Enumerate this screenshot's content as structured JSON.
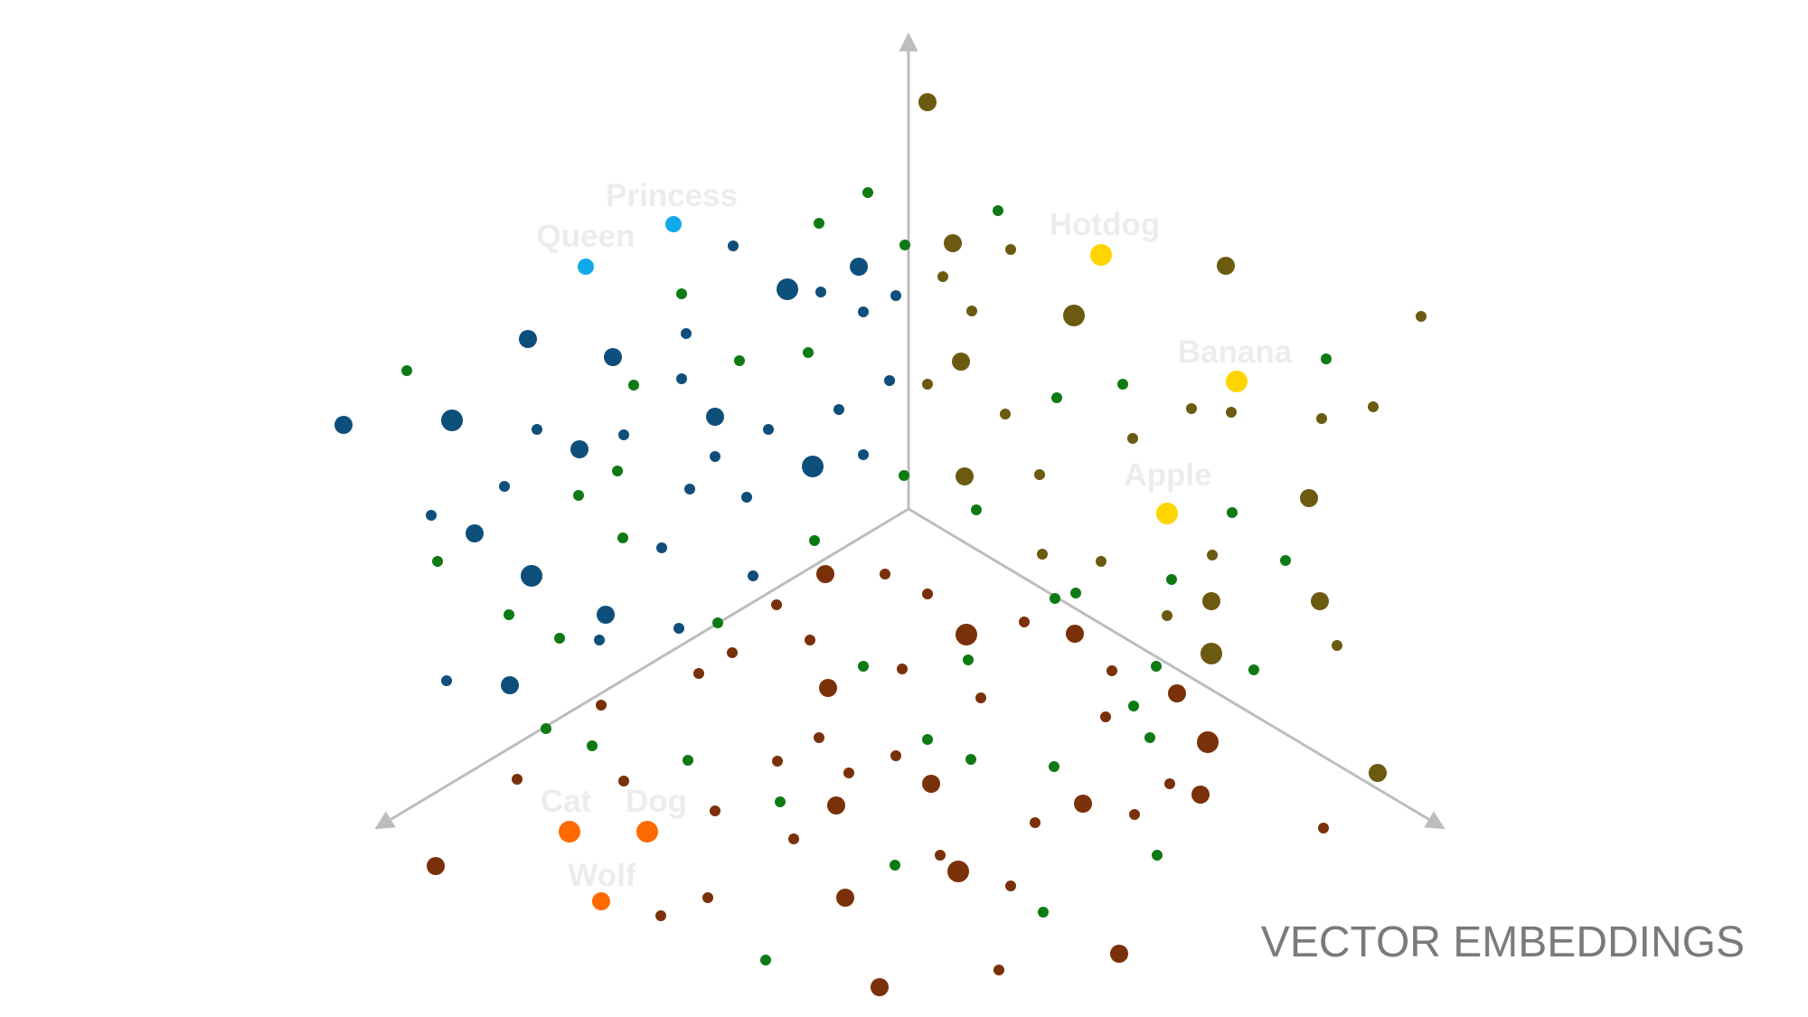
{
  "title": "VECTOR EMBEDDINGS",
  "colors": {
    "axis": "#bdbdbd",
    "blue_dark": "#0d4f7a",
    "blue_light": "#12a9ea",
    "olive": "#6b5a10",
    "yellow": "#ffd500",
    "brown": "#7a3008",
    "orange": "#ff6a00",
    "green": "#0e7a14",
    "label_text": "#ececec",
    "title_text": "#7a7a7a"
  },
  "labels": {
    "princess": "Princess",
    "queen": "Queen",
    "hotdog": "Hotdog",
    "banana": "Banana",
    "apple": "Apple",
    "cat": "Cat",
    "dog": "Dog",
    "wolf": "Wolf"
  }
}
